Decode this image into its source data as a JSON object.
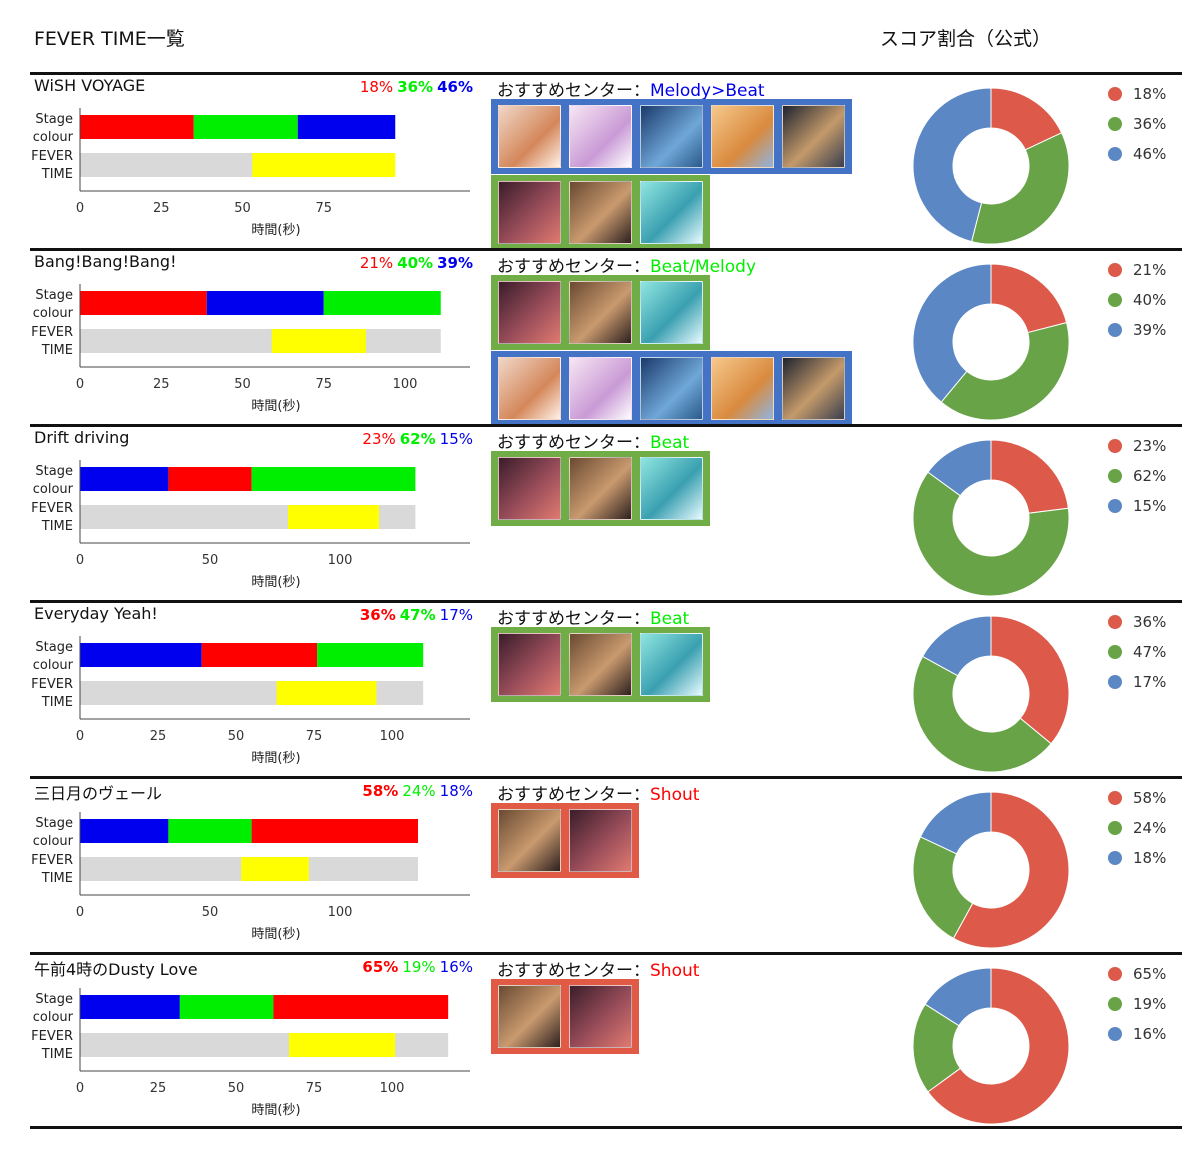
{
  "header": {
    "title": "FEVER TIME一覧",
    "score_title": "スコア割合（公式）"
  },
  "labels": {
    "stage1": "Stage",
    "stage2": "colour",
    "fever1": "FEVER",
    "fever2": "TIME",
    "xaxis": "時間(秒)",
    "rec_prefix": "おすすめセンター："
  },
  "colors": {
    "red": "#ff0000",
    "green": "#00ee00",
    "blue": "#0000ee",
    "fever": "#ffff00",
    "track": "#d9d9d9",
    "donut_red": "#dd5a4a",
    "donut_green": "#68a348",
    "donut_blue": "#5b88c4",
    "border_blue": "#4472c4",
    "border_green": "#70ad47",
    "border_red": "#e05a45"
  },
  "songs": [
    {
      "title": "WiSH VOYAGE",
      "pct": [
        {
          "text": "18%",
          "color": "red",
          "bold": false
        },
        {
          "text": "36%",
          "color": "green",
          "bold": true
        },
        {
          "text": "46%",
          "color": "blue",
          "bold": true
        }
      ],
      "rec": "Melody>Beat",
      "rec_color": "blue"
    },
    {
      "title": "Bang!Bang!Bang!",
      "pct": [
        {
          "text": "21%",
          "color": "red",
          "bold": false
        },
        {
          "text": "40%",
          "color": "green",
          "bold": true
        },
        {
          "text": "39%",
          "color": "blue",
          "bold": true
        }
      ],
      "rec": "Beat/Melody",
      "rec_color": "green"
    },
    {
      "title": "Drift driving",
      "pct": [
        {
          "text": "23%",
          "color": "red",
          "bold": false
        },
        {
          "text": "62%",
          "color": "green",
          "bold": true
        },
        {
          "text": "15%",
          "color": "blue",
          "bold": false
        }
      ],
      "rec": "Beat",
      "rec_color": "green"
    },
    {
      "title": "Everyday Yeah!",
      "pct": [
        {
          "text": "36%",
          "color": "red",
          "bold": true
        },
        {
          "text": "47%",
          "color": "green",
          "bold": true
        },
        {
          "text": "17%",
          "color": "blue",
          "bold": false
        }
      ],
      "rec": "Beat",
      "rec_color": "green"
    },
    {
      "title": "三日月のヴェール",
      "pct": [
        {
          "text": "58%",
          "color": "red",
          "bold": true
        },
        {
          "text": "24%",
          "color": "green",
          "bold": false
        },
        {
          "text": "18%",
          "color": "blue",
          "bold": false
        }
      ],
      "rec": "Shout",
      "rec_color": "red"
    },
    {
      "title": "午前4時のDusty Love",
      "pct": [
        {
          "text": "65%",
          "color": "red",
          "bold": true
        },
        {
          "text": "19%",
          "color": "green",
          "bold": false
        },
        {
          "text": "16%",
          "color": "blue",
          "bold": false
        }
      ],
      "rec": "Shout",
      "rec_color": "red"
    }
  ],
  "chart_data": [
    {
      "type": "bar",
      "title": "WiSH VOYAGE",
      "xlabel": "時間(秒)",
      "xlim": [
        0,
        120
      ],
      "ticks": [
        0,
        25,
        50,
        75
      ],
      "stage": [
        {
          "color": "red",
          "start": 0,
          "end": 35
        },
        {
          "color": "green",
          "start": 35,
          "end": 67
        },
        {
          "color": "blue",
          "start": 67,
          "end": 97
        }
      ],
      "fever": {
        "track_end": 97,
        "start": 53,
        "end": 97
      },
      "donut": {
        "series": [
          {
            "name": "18%",
            "value": 18,
            "color": "donut_red"
          },
          {
            "name": "36%",
            "value": 36,
            "color": "donut_green"
          },
          {
            "name": "46%",
            "value": 46,
            "color": "donut_blue"
          }
        ]
      }
    },
    {
      "type": "bar",
      "title": "Bang!Bang!Bang!",
      "xlabel": "時間(秒)",
      "xlim": [
        0,
        120
      ],
      "ticks": [
        0,
        25,
        50,
        75,
        100
      ],
      "stage": [
        {
          "color": "red",
          "start": 0,
          "end": 39
        },
        {
          "color": "blue",
          "start": 39,
          "end": 75
        },
        {
          "color": "green",
          "start": 75,
          "end": 111
        }
      ],
      "fever": {
        "track_end": 111,
        "start": 59,
        "end": 88
      },
      "donut": {
        "series": [
          {
            "name": "21%",
            "value": 21,
            "color": "donut_red"
          },
          {
            "name": "40%",
            "value": 40,
            "color": "donut_green"
          },
          {
            "name": "39%",
            "value": 39,
            "color": "donut_blue"
          }
        ]
      }
    },
    {
      "type": "bar",
      "title": "Drift driving",
      "xlabel": "時間(秒)",
      "xlim": [
        0,
        150
      ],
      "ticks": [
        0,
        50,
        100
      ],
      "stage": [
        {
          "color": "blue",
          "start": 0,
          "end": 34
        },
        {
          "color": "red",
          "start": 34,
          "end": 66
        },
        {
          "color": "green",
          "start": 66,
          "end": 129
        }
      ],
      "fever": {
        "track_end": 129,
        "start": 80,
        "end": 115
      },
      "donut": {
        "series": [
          {
            "name": "23%",
            "value": 23,
            "color": "donut_red"
          },
          {
            "name": "62%",
            "value": 62,
            "color": "donut_green"
          },
          {
            "name": "15%",
            "value": 15,
            "color": "donut_blue"
          }
        ]
      }
    },
    {
      "type": "bar",
      "title": "Everyday Yeah!",
      "xlabel": "時間(秒)",
      "xlim": [
        0,
        125
      ],
      "ticks": [
        0,
        25,
        50,
        75,
        100
      ],
      "stage": [
        {
          "color": "blue",
          "start": 0,
          "end": 39
        },
        {
          "color": "red",
          "start": 39,
          "end": 76
        },
        {
          "color": "green",
          "start": 76,
          "end": 110
        }
      ],
      "fever": {
        "track_end": 110,
        "start": 63,
        "end": 95
      },
      "donut": {
        "series": [
          {
            "name": "36%",
            "value": 36,
            "color": "donut_red"
          },
          {
            "name": "47%",
            "value": 47,
            "color": "donut_green"
          },
          {
            "name": "17%",
            "value": 17,
            "color": "donut_blue"
          }
        ]
      }
    },
    {
      "type": "bar",
      "title": "三日月のヴェール",
      "xlabel": "時間(秒)",
      "xlim": [
        0,
        150
      ],
      "ticks": [
        0,
        50,
        100
      ],
      "stage": [
        {
          "color": "blue",
          "start": 0,
          "end": 34
        },
        {
          "color": "green",
          "start": 34,
          "end": 66
        },
        {
          "color": "red",
          "start": 66,
          "end": 130
        }
      ],
      "fever": {
        "track_end": 130,
        "start": 62,
        "end": 88
      },
      "donut": {
        "series": [
          {
            "name": "58%",
            "value": 58,
            "color": "donut_red"
          },
          {
            "name": "24%",
            "value": 24,
            "color": "donut_green"
          },
          {
            "name": "18%",
            "value": 18,
            "color": "donut_blue"
          }
        ]
      }
    },
    {
      "type": "bar",
      "title": "午前4時のDusty Love",
      "xlabel": "時間(秒)",
      "xlim": [
        0,
        125
      ],
      "ticks": [
        0,
        25,
        50,
        75,
        100
      ],
      "stage": [
        {
          "color": "blue",
          "start": 0,
          "end": 32
        },
        {
          "color": "green",
          "start": 32,
          "end": 62
        },
        {
          "color": "red",
          "start": 62,
          "end": 118
        }
      ],
      "fever": {
        "track_end": 118,
        "start": 67,
        "end": 101
      },
      "donut": {
        "series": [
          {
            "name": "65%",
            "value": 65,
            "color": "donut_red"
          },
          {
            "name": "19%",
            "value": 19,
            "color": "donut_green"
          },
          {
            "name": "16%",
            "value": 16,
            "color": "donut_blue"
          }
        ]
      }
    }
  ]
}
